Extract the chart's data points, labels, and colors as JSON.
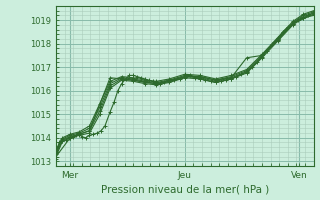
{
  "title": "",
  "xlabel": "Pression niveau de la mer( hPa )",
  "bg_color": "#cceedd",
  "grid_major_color": "#88bbaa",
  "grid_minor_color": "#aaccbb",
  "line_color": "#2d6a2d",
  "ylim": [
    1012.8,
    1019.6
  ],
  "xlim": [
    0.0,
    1.0
  ],
  "yticks": [
    1013,
    1014,
    1015,
    1016,
    1017,
    1018,
    1019
  ],
  "xtick_labels": [
    "Mer",
    "Jeu",
    "Ven"
  ],
  "xtick_positions": [
    0.055,
    0.5,
    0.945
  ],
  "lines": [
    {
      "x": [
        0.0,
        0.012,
        0.024,
        0.038,
        0.052,
        0.065,
        0.078,
        0.09,
        0.1,
        0.115,
        0.13,
        0.145,
        0.16,
        0.175,
        0.19,
        0.21,
        0.225,
        0.24,
        0.255,
        0.27,
        0.285,
        0.3,
        0.315,
        0.33,
        0.345,
        0.36,
        0.375,
        0.39,
        0.405,
        0.42,
        0.44,
        0.46,
        0.48,
        0.5,
        0.52,
        0.54,
        0.56,
        0.58,
        0.6,
        0.62,
        0.64,
        0.66,
        0.68,
        0.7,
        0.72,
        0.74,
        0.76,
        0.78,
        0.8,
        0.82,
        0.84,
        0.86,
        0.88,
        0.9,
        0.92,
        0.94,
        0.96,
        0.98,
        1.0
      ],
      "y": [
        1013.1,
        1013.8,
        1013.85,
        1013.9,
        1014.0,
        1014.05,
        1014.1,
        1014.15,
        1014.05,
        1014.0,
        1014.1,
        1014.15,
        1014.2,
        1014.3,
        1014.5,
        1015.1,
        1015.5,
        1016.0,
        1016.3,
        1016.5,
        1016.65,
        1016.65,
        1016.6,
        1016.55,
        1016.5,
        1016.45,
        1016.4,
        1016.35,
        1016.3,
        1016.35,
        1016.4,
        1016.45,
        1016.5,
        1016.6,
        1016.65,
        1016.55,
        1016.5,
        1016.45,
        1016.4,
        1016.35,
        1016.4,
        1016.45,
        1016.5,
        1016.6,
        1016.7,
        1016.8,
        1017.0,
        1017.2,
        1017.5,
        1017.7,
        1018.0,
        1018.2,
        1018.5,
        1018.7,
        1018.85,
        1019.0,
        1019.1,
        1019.2,
        1019.3
      ]
    },
    {
      "x": [
        0.0,
        0.025,
        0.055,
        0.09,
        0.13,
        0.17,
        0.21,
        0.255,
        0.3,
        0.345,
        0.39,
        0.44,
        0.5,
        0.56,
        0.62,
        0.68,
        0.74,
        0.8,
        0.86,
        0.92,
        0.96,
        1.0
      ],
      "y": [
        1013.2,
        1013.85,
        1014.0,
        1014.1,
        1014.2,
        1015.0,
        1016.1,
        1016.45,
        1016.4,
        1016.3,
        1016.25,
        1016.35,
        1016.55,
        1016.5,
        1016.35,
        1016.5,
        1016.75,
        1017.4,
        1018.1,
        1018.8,
        1019.1,
        1019.2
      ]
    },
    {
      "x": [
        0.0,
        0.025,
        0.055,
        0.09,
        0.13,
        0.17,
        0.21,
        0.255,
        0.3,
        0.345,
        0.39,
        0.44,
        0.5,
        0.56,
        0.62,
        0.68,
        0.74,
        0.8,
        0.86,
        0.92,
        0.96,
        1.0
      ],
      "y": [
        1013.3,
        1013.9,
        1014.05,
        1014.15,
        1014.3,
        1015.15,
        1016.2,
        1016.5,
        1016.45,
        1016.35,
        1016.3,
        1016.4,
        1016.6,
        1016.55,
        1016.4,
        1016.55,
        1016.8,
        1017.45,
        1018.15,
        1018.85,
        1019.15,
        1019.3
      ]
    },
    {
      "x": [
        0.0,
        0.025,
        0.055,
        0.09,
        0.13,
        0.17,
        0.21,
        0.255,
        0.3,
        0.345,
        0.39,
        0.44,
        0.5,
        0.56,
        0.62,
        0.68,
        0.74,
        0.8,
        0.86,
        0.92,
        0.96,
        1.0
      ],
      "y": [
        1013.4,
        1013.95,
        1014.1,
        1014.2,
        1014.4,
        1015.3,
        1016.3,
        1016.55,
        1016.5,
        1016.4,
        1016.35,
        1016.45,
        1016.65,
        1016.6,
        1016.45,
        1016.6,
        1016.85,
        1017.5,
        1018.2,
        1018.9,
        1019.2,
        1019.35
      ]
    },
    {
      "x": [
        0.0,
        0.025,
        0.055,
        0.09,
        0.13,
        0.17,
        0.21,
        0.255,
        0.3,
        0.345,
        0.39,
        0.44,
        0.5,
        0.56,
        0.62,
        0.68,
        0.74,
        0.8,
        0.86,
        0.92,
        0.96,
        1.0
      ],
      "y": [
        1013.5,
        1014.0,
        1014.15,
        1014.25,
        1014.5,
        1015.45,
        1016.4,
        1016.6,
        1016.55,
        1016.45,
        1016.4,
        1016.5,
        1016.7,
        1016.65,
        1016.5,
        1016.65,
        1016.9,
        1017.55,
        1018.25,
        1018.95,
        1019.25,
        1019.4
      ]
    },
    {
      "x": [
        0.0,
        0.055,
        0.13,
        0.21,
        0.3,
        0.39,
        0.5,
        0.56,
        0.62,
        0.68,
        0.74,
        0.8,
        0.86,
        0.92,
        1.0
      ],
      "y": [
        1013.2,
        1014.0,
        1014.3,
        1016.55,
        1016.45,
        1016.3,
        1016.6,
        1016.6,
        1016.45,
        1016.55,
        1017.4,
        1017.5,
        1018.15,
        1018.85,
        1019.25
      ]
    }
  ]
}
